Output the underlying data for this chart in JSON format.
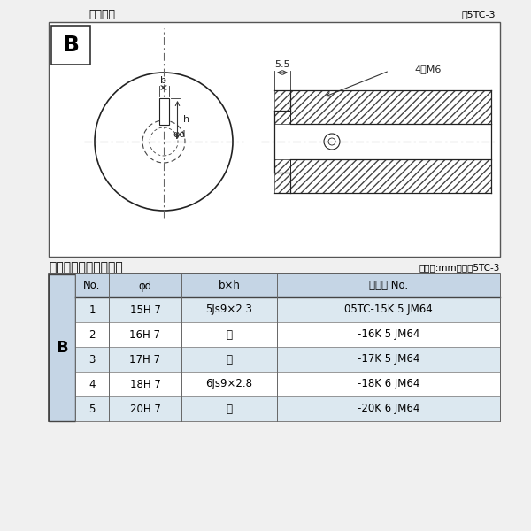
{
  "title_left": "軸穴形状",
  "title_right": "囵5TC-3",
  "table_title": "軸穴形状コード一覧表",
  "table_unit": "（単位:mm）　表5TC-3",
  "bg_color": "#f0f0f0",
  "draw_bg": "#ffffff",
  "dim_55": "5.5",
  "dim_4m6": "4－M6",
  "label_b": "b",
  "label_h": "h",
  "label_phid": "φd",
  "rows": [
    [
      "1",
      "15H 7",
      "5Js9×2.3",
      "05TC-15K 5 JM64"
    ],
    [
      "2",
      "16H 7",
      "〃",
      "-16K 5 JM64"
    ],
    [
      "3",
      "17H 7",
      "〃",
      "-17K 5 JM64"
    ],
    [
      "4",
      "18H 7",
      "6Js9×2.8",
      "-18K 6 JM64"
    ],
    [
      "5",
      "20H 7",
      "〃",
      "-20K 6 JM64"
    ]
  ],
  "col_headers": [
    "No.",
    "φd",
    "b×h",
    "コード No."
  ],
  "b_label": "B",
  "b_col_color": "#c5d5e5",
  "header_color": "#c5d5e5",
  "row_color_odd": "#dce8f0",
  "row_color_even": "#ffffff"
}
